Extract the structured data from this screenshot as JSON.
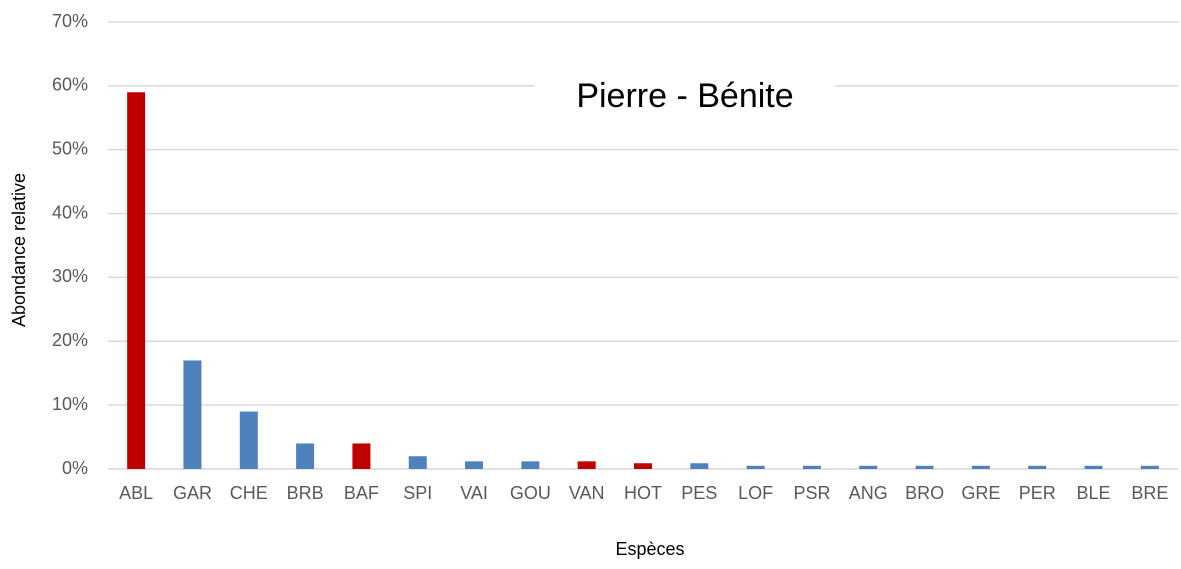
{
  "chart_data": {
    "type": "bar",
    "title": "Pierre - Bénite",
    "x_label": "Espèces",
    "y_label": "Abondance relative",
    "categories": [
      "ABL",
      "GAR",
      "CHE",
      "BRB",
      "BAF",
      "SPI",
      "VAI",
      "GOU",
      "VAN",
      "HOT",
      "PES",
      "LOF",
      "PSR",
      "ANG",
      "BRO",
      "GRE",
      "PER",
      "BLE",
      "BRE"
    ],
    "values": [
      59,
      17,
      9,
      4,
      4,
      2,
      1.2,
      1.2,
      1.2,
      0.9,
      0.9,
      0.5,
      0.5,
      0.5,
      0.5,
      0.5,
      0.5,
      0.5,
      0.5
    ],
    "colors": [
      "#c00000",
      "#4f81bd",
      "#4f81bd",
      "#4f81bd",
      "#c00000",
      "#4f81bd",
      "#4f81bd",
      "#4f81bd",
      "#c00000",
      "#c00000",
      "#4f81bd",
      "#4f81bd",
      "#4f81bd",
      "#4f81bd",
      "#4f81bd",
      "#4f81bd",
      "#4f81bd",
      "#4f81bd",
      "#4f81bd"
    ],
    "ylim": [
      0,
      70
    ],
    "yticks": [
      {
        "value": 0,
        "label": "0%"
      },
      {
        "value": 10,
        "label": "10%"
      },
      {
        "value": 20,
        "label": "20%"
      },
      {
        "value": 30,
        "label": "30%"
      },
      {
        "value": 40,
        "label": "40%"
      },
      {
        "value": 50,
        "label": "50%"
      },
      {
        "value": 60,
        "label": "60%"
      },
      {
        "value": 70,
        "label": "70%"
      }
    ],
    "grid": true
  }
}
